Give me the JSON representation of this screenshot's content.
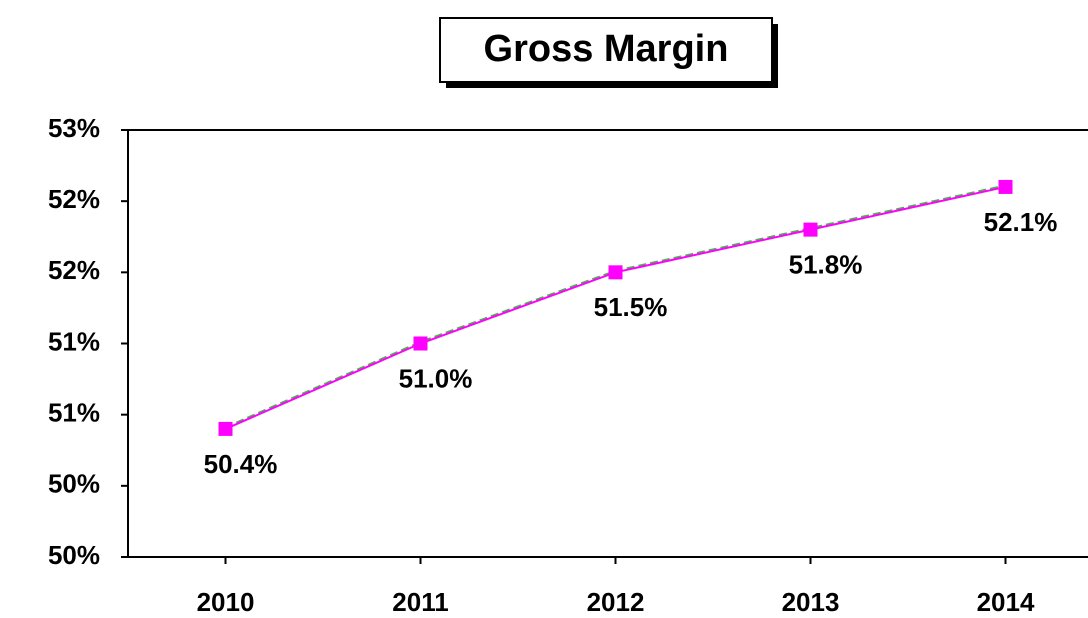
{
  "chart_data": {
    "type": "line",
    "title": "Gross Margin",
    "categories": [
      "2010",
      "2011",
      "2012",
      "2013",
      "2014"
    ],
    "series": [
      {
        "color": "#ff00ff",
        "values": [
          50.4,
          51.0,
          51.5,
          51.8,
          52.1
        ],
        "value_labels": [
          "50.4%",
          "51.0%",
          "51.5%",
          "51.8%",
          "52.1%"
        ]
      }
    ],
    "ylim": [
      49.5,
      52.5
    ],
    "yticks": [
      {
        "value": 49.5,
        "label": "50%"
      },
      {
        "value": 50,
        "label": "50%"
      },
      {
        "value": 50.5,
        "label": "51%"
      },
      {
        "value": 51,
        "label": "51%"
      },
      {
        "value": 51.5,
        "label": "52%"
      },
      {
        "value": 52,
        "label": "52%"
      },
      {
        "value": 52.5,
        "label": "53%"
      }
    ],
    "grid": false
  }
}
